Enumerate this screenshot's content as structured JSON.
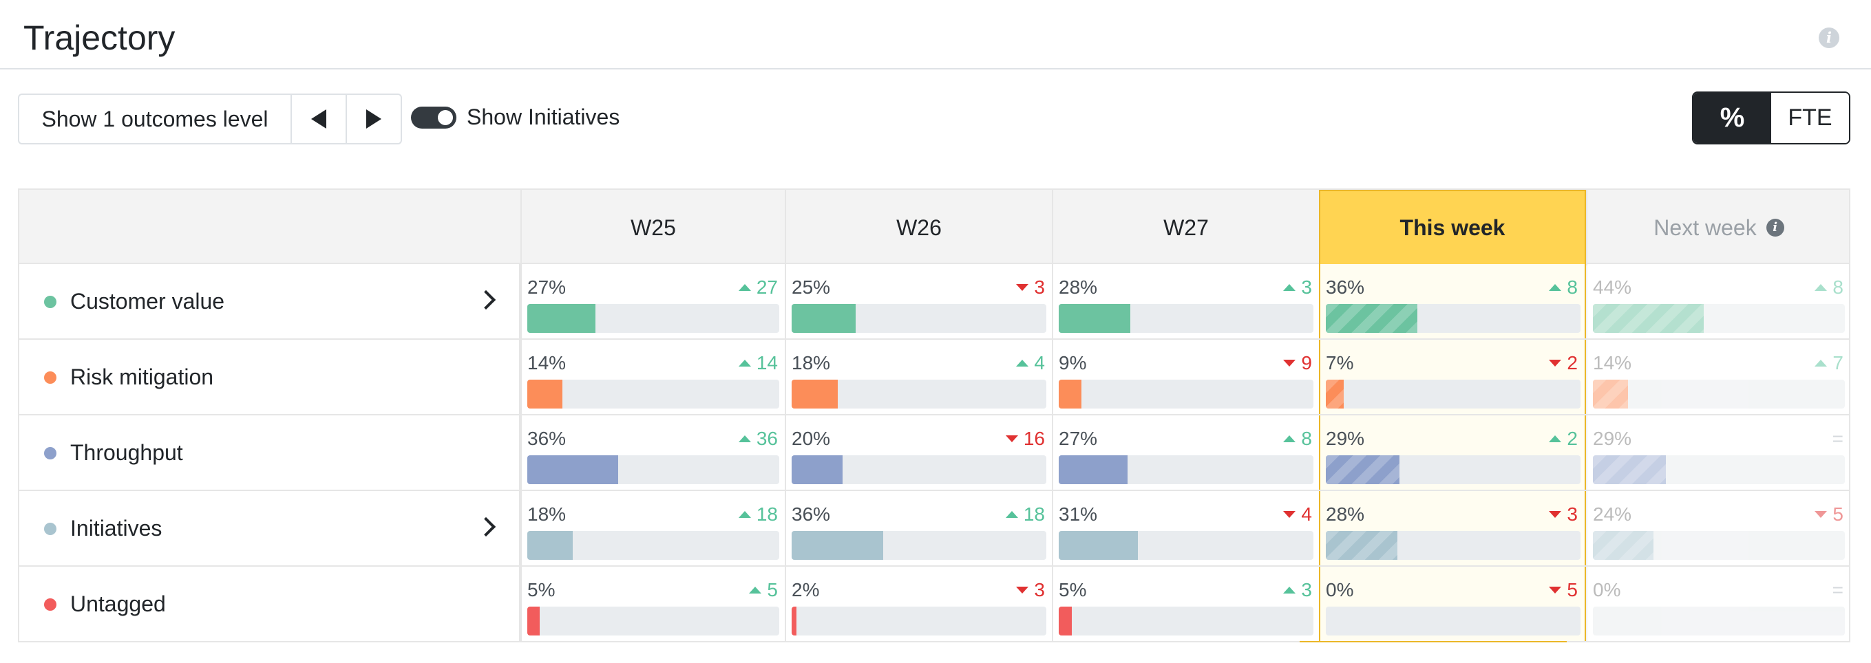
{
  "header": {
    "title": "Trajectory"
  },
  "toolbar": {
    "level_label": "Show 1 outcomes level",
    "prev_icon": "caret-left-icon",
    "next_icon": "caret-right-icon",
    "toggle_on": true,
    "toggle_label": "Show Initiatives",
    "units": [
      {
        "label": "%",
        "active": true
      },
      {
        "label": "FTE",
        "active": false
      }
    ]
  },
  "columns": [
    "W25",
    "W26",
    "W27",
    "This week",
    "Next week"
  ],
  "rows": [
    {
      "label": "Customer value",
      "color": "#6cc3a0",
      "expandable": true,
      "cells": [
        {
          "pct": "27%",
          "value": 27,
          "dir": "up",
          "delta": "27"
        },
        {
          "pct": "25%",
          "value": 25,
          "dir": "down",
          "delta": "3"
        },
        {
          "pct": "28%",
          "value": 28,
          "dir": "up",
          "delta": "3"
        },
        {
          "pct": "36%",
          "value": 36,
          "dir": "up",
          "delta": "8"
        },
        {
          "pct": "44%",
          "value": 44,
          "dir": "up",
          "delta": "8"
        }
      ]
    },
    {
      "label": "Risk mitigation",
      "color": "#fc8d59",
      "expandable": false,
      "cells": [
        {
          "pct": "14%",
          "value": 14,
          "dir": "up",
          "delta": "14"
        },
        {
          "pct": "18%",
          "value": 18,
          "dir": "up",
          "delta": "4"
        },
        {
          "pct": "9%",
          "value": 9,
          "dir": "down",
          "delta": "9"
        },
        {
          "pct": "7%",
          "value": 7,
          "dir": "down",
          "delta": "2"
        },
        {
          "pct": "14%",
          "value": 14,
          "dir": "up",
          "delta": "7"
        }
      ]
    },
    {
      "label": "Throughput",
      "color": "#8da0cb",
      "expandable": false,
      "cells": [
        {
          "pct": "36%",
          "value": 36,
          "dir": "up",
          "delta": "36"
        },
        {
          "pct": "20%",
          "value": 20,
          "dir": "down",
          "delta": "16"
        },
        {
          "pct": "27%",
          "value": 27,
          "dir": "up",
          "delta": "8"
        },
        {
          "pct": "29%",
          "value": 29,
          "dir": "up",
          "delta": "2"
        },
        {
          "pct": "29%",
          "value": 29,
          "dir": "eq",
          "delta": "="
        }
      ]
    },
    {
      "label": "Initiatives",
      "color": "#a9c4cf",
      "expandable": true,
      "cells": [
        {
          "pct": "18%",
          "value": 18,
          "dir": "up",
          "delta": "18"
        },
        {
          "pct": "36%",
          "value": 36,
          "dir": "up",
          "delta": "18"
        },
        {
          "pct": "31%",
          "value": 31,
          "dir": "down",
          "delta": "4"
        },
        {
          "pct": "28%",
          "value": 28,
          "dir": "down",
          "delta": "3"
        },
        {
          "pct": "24%",
          "value": 24,
          "dir": "down",
          "delta": "5"
        }
      ]
    },
    {
      "label": "Untagged",
      "color": "#f25c5c",
      "expandable": false,
      "cells": [
        {
          "pct": "5%",
          "value": 5,
          "dir": "up",
          "delta": "5"
        },
        {
          "pct": "2%",
          "value": 2,
          "dir": "down",
          "delta": "3"
        },
        {
          "pct": "5%",
          "value": 5,
          "dir": "up",
          "delta": "3"
        },
        {
          "pct": "0%",
          "value": 0,
          "dir": "down",
          "delta": "5"
        },
        {
          "pct": "0%",
          "value": 0,
          "dir": "eq",
          "delta": "="
        }
      ]
    }
  ]
}
